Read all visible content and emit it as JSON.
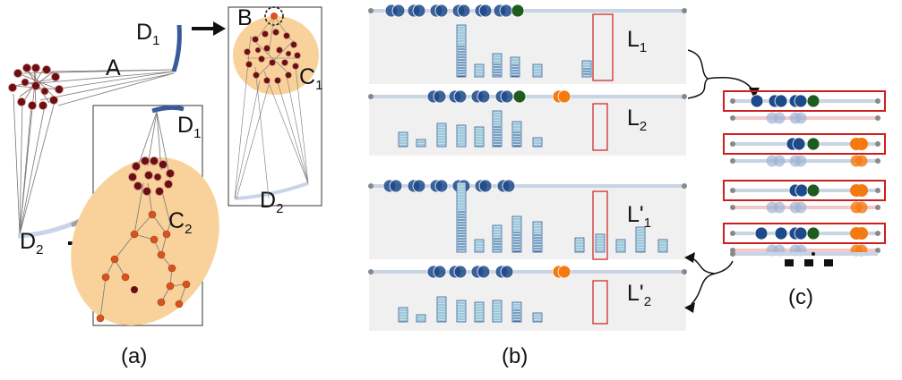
{
  "panel_a": {
    "caption": "(a)",
    "labels": {
      "d1_top": "D",
      "d1_top_sub": "1",
      "a": "A",
      "d1_inner": "D",
      "d1_inner_sub": "1",
      "c2": "C",
      "c2_sub": "2",
      "d2": "D",
      "d2_sub": "2",
      "b": "B",
      "c1": "C",
      "c1_sub": "1",
      "d2_right": "D",
      "d2_right_sub": "2"
    }
  },
  "panel_b": {
    "caption": "(b)",
    "rows": [
      {
        "label": "L",
        "sub": "1",
        "prime": ""
      },
      {
        "label": "L",
        "sub": "2",
        "prime": ""
      },
      {
        "label": "L",
        "sub": "1",
        "prime": "'"
      },
      {
        "label": "L",
        "sub": "2",
        "prime": "'"
      }
    ]
  },
  "panel_c": {
    "caption": "(c)"
  },
  "colors": {
    "node_dark": "#6b0f12",
    "node_orange": "#d9531e",
    "cluster_fill": "#f8d29a",
    "blue_bar": "#3a5a9a",
    "track_bg": "#f0f0f0",
    "dot_blue": "#1e4a8a",
    "dot_green": "#1f5a1f",
    "dot_orange": "#f47a10",
    "highlight_red": "#cc1f1f"
  }
}
